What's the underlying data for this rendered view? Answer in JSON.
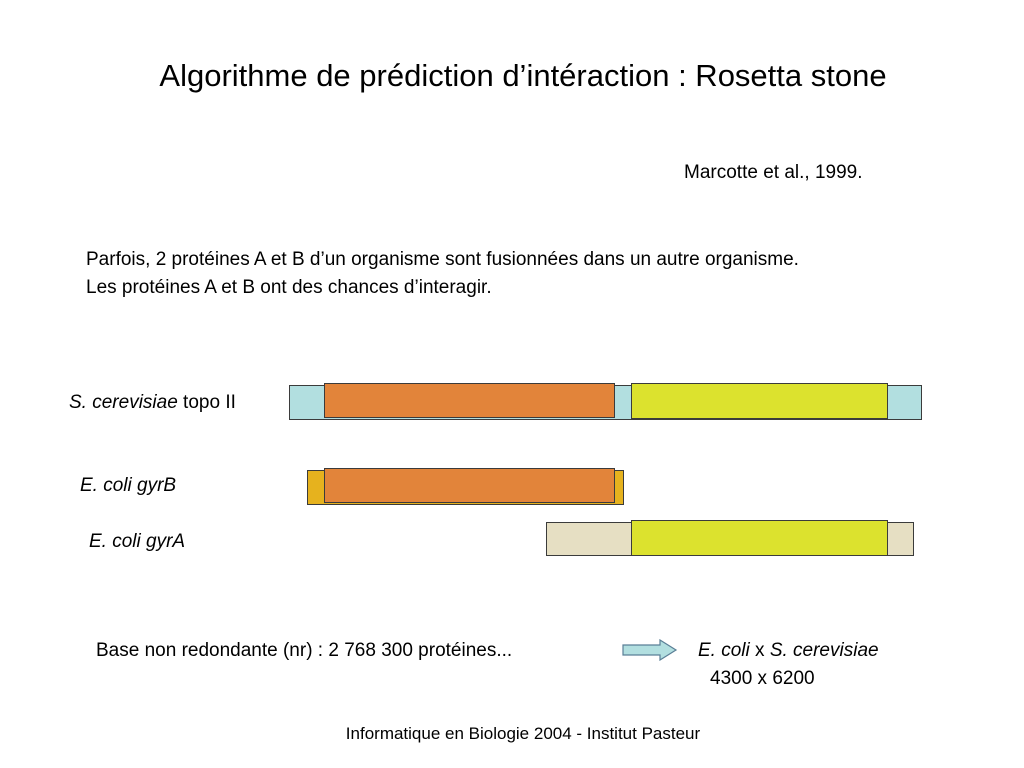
{
  "slide": {
    "title": "Algorithme de prédiction d’intéraction : Rosetta stone",
    "citation": "Marcotte et al., 1999.",
    "intro_line1": "Parfois, 2 protéines A et B d’un organisme sont fusionnées dans un autre organisme.",
    "intro_line2": "Les protéines A et B ont des chances d’interagir."
  },
  "proteins": {
    "cerevisiae": {
      "species": "S. cerevisiae",
      "gene": " topo II"
    },
    "gyrB": {
      "label": "E. coli gyrB"
    },
    "gyrA": {
      "label": "E. coli gyrA"
    }
  },
  "colors": {
    "topo_background": "#b2dfe0",
    "gyrB_background": "#e6b21e",
    "gyrA_background": "#e6dfc3",
    "domain_A": "#e2843a",
    "domain_B": "#dce22e"
  },
  "database": {
    "text": "Base non redondante (nr) : 2 768 300 protéines...",
    "org_a": "E. coli",
    "cross": " x ",
    "org_b": "S. cerevisiae",
    "ratio": "4300 x 6200"
  },
  "footer": "Informatique en Biologie 2004 - Institut Pasteur"
}
